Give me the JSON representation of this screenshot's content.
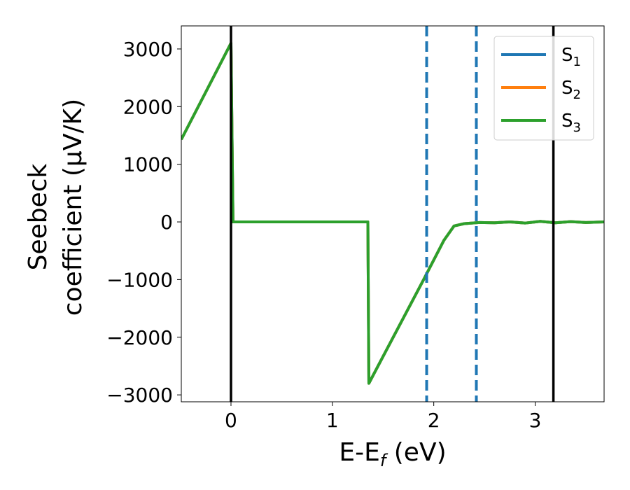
{
  "chart_data": {
    "type": "line",
    "xlabel_main": "E-E",
    "xlabel_sub": "f",
    "xlabel_unit": " (eV)",
    "ylabel_line1": "Seebeck",
    "ylabel_line2": "coefficient  (μV/K)",
    "xlim": [
      -0.49,
      3.68
    ],
    "ylim": [
      -3120,
      3400
    ],
    "xticks": [
      0,
      1,
      2,
      3
    ],
    "xtick_labels": [
      "0",
      "1",
      "2",
      "3"
    ],
    "yticks": [
      3000,
      2000,
      1000,
      0,
      -1000,
      -2000,
      -3000
    ],
    "ytick_labels": [
      "3000",
      "2000",
      "1000",
      "0",
      "−1000",
      "−2000",
      "−3000"
    ],
    "series": [
      {
        "name": "S",
        "subscript": "1",
        "color": "#1f77b4",
        "x": [
          -0.49,
          0.0,
          0.02,
          1.35,
          1.35,
          1.36,
          1.9,
          2.1,
          2.2,
          2.3,
          2.45,
          2.6,
          2.75,
          2.9,
          3.05,
          3.2,
          3.35,
          3.5,
          3.68
        ],
        "y": [
          1430,
          3100,
          0,
          0,
          0,
          -2800,
          -1000,
          -320,
          -70,
          -30,
          -10,
          -15,
          0,
          -20,
          10,
          -15,
          5,
          -10,
          0
        ]
      },
      {
        "name": "S",
        "subscript": "2",
        "color": "#ff7f0e",
        "x": [
          -0.49,
          0.0,
          0.02,
          1.35,
          1.35,
          1.36,
          1.9,
          2.1,
          2.2,
          2.3,
          2.45,
          2.6,
          2.75,
          2.9,
          3.05,
          3.2,
          3.35,
          3.5,
          3.68
        ],
        "y": [
          1430,
          3100,
          0,
          0,
          0,
          -2800,
          -1000,
          -320,
          -70,
          -30,
          -10,
          -15,
          0,
          -20,
          10,
          -15,
          5,
          -10,
          0
        ]
      },
      {
        "name": "S",
        "subscript": "3",
        "color": "#2ca02c",
        "x": [
          -0.49,
          0.0,
          0.02,
          1.35,
          1.35,
          1.36,
          1.9,
          2.1,
          2.2,
          2.3,
          2.45,
          2.6,
          2.75,
          2.9,
          3.05,
          3.2,
          3.35,
          3.5,
          3.68
        ],
        "y": [
          1430,
          3100,
          0,
          0,
          0,
          -2800,
          -1000,
          -320,
          -70,
          -30,
          -10,
          -15,
          0,
          -20,
          10,
          -15,
          5,
          -10,
          0
        ]
      }
    ],
    "vlines": [
      {
        "x": 0.0,
        "color": "#000000",
        "style": "solid"
      },
      {
        "x": 3.18,
        "color": "#000000",
        "style": "solid"
      },
      {
        "x": 1.93,
        "color": "#1f77b4",
        "style": "dashed"
      },
      {
        "x": 2.42,
        "color": "#1f77b4",
        "style": "dashed"
      }
    ],
    "legend_position": "top-right",
    "grid": false
  }
}
